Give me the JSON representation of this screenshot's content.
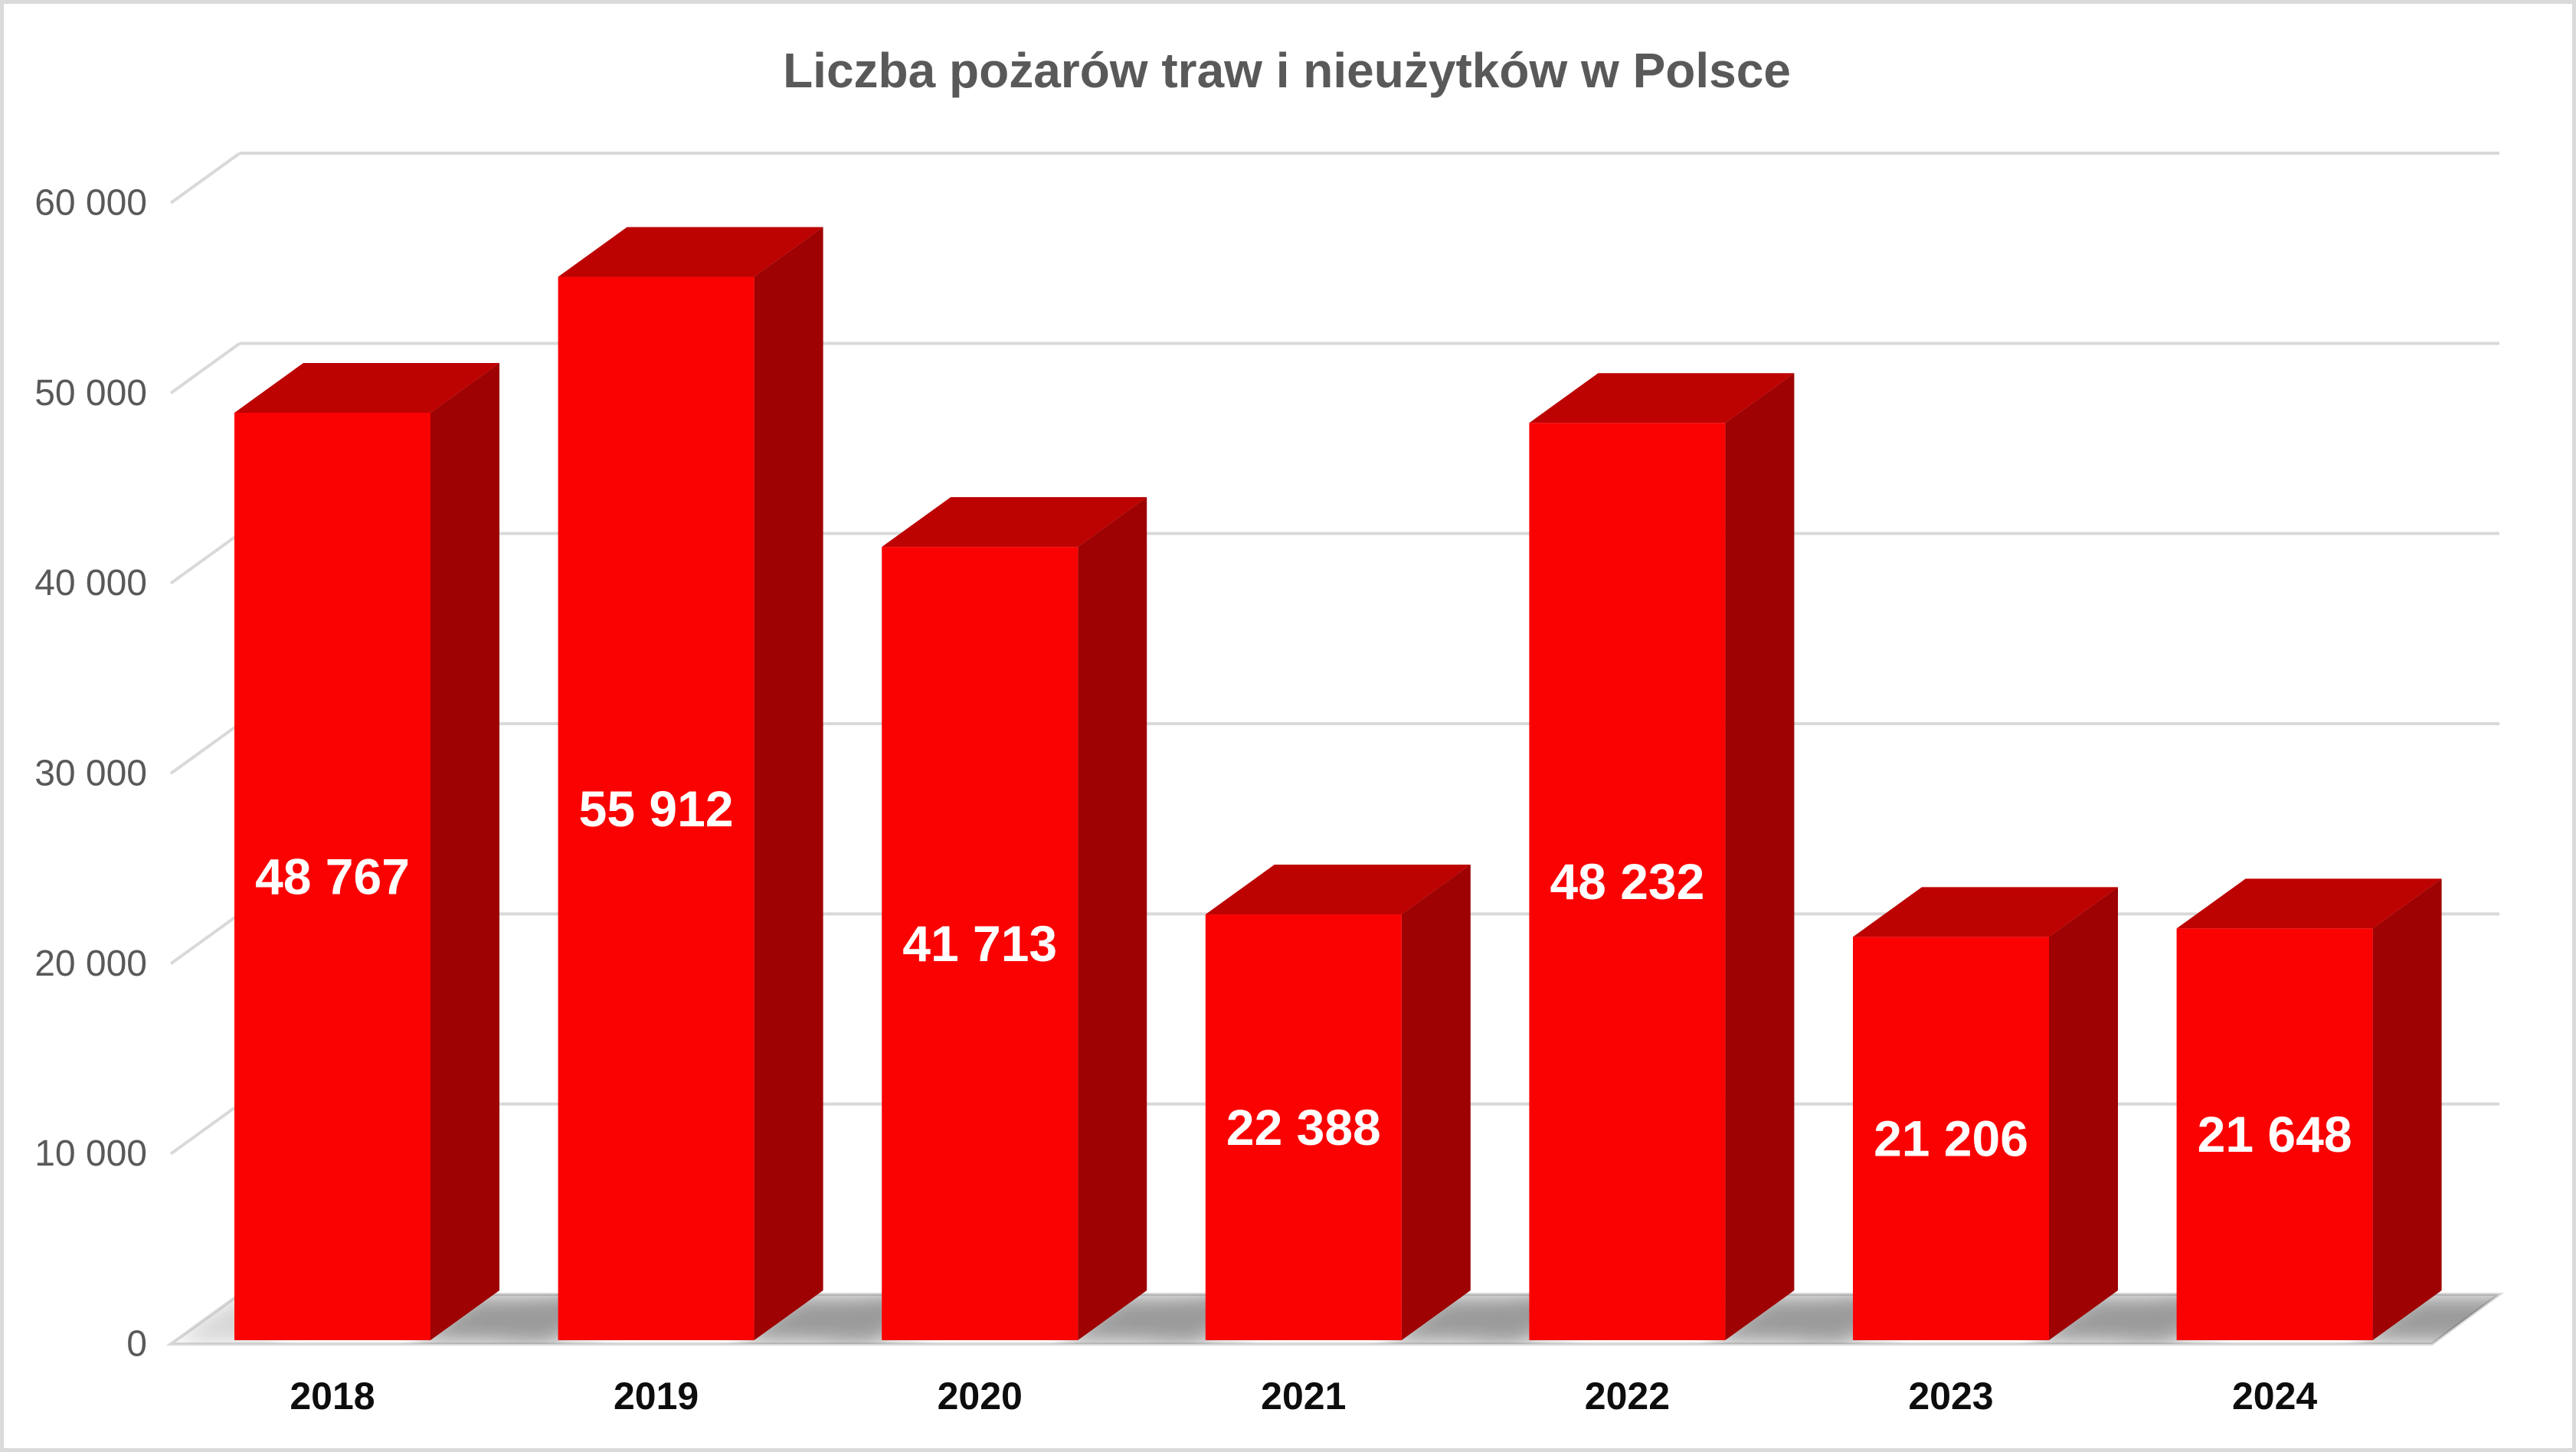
{
  "title": "Liczba pożarów traw i nieużytków w Polsce",
  "chart_data": {
    "type": "bar",
    "style": "3d-column",
    "title": "Liczba pożarów traw i nieużytków w Polsce",
    "categories": [
      "2018",
      "2019",
      "2020",
      "2021",
      "2022",
      "2023",
      "2024"
    ],
    "values": [
      48767,
      55912,
      41713,
      22388,
      48232,
      21206,
      21648
    ],
    "value_labels": [
      "48 767",
      "55 912",
      "41 713",
      "22 388",
      "48 232",
      "21 206",
      "21 648"
    ],
    "xlabel": "",
    "ylabel": "",
    "ylim": [
      0,
      60000
    ],
    "ytick_step": 10000,
    "ytick_labels": [
      "0",
      "10 000",
      "20 000",
      "30 000",
      "40 000",
      "50 000",
      "60 000"
    ],
    "grid": true,
    "legend": false,
    "colors": {
      "bar_front": "#fb0202",
      "bar_top": "#bd0202",
      "bar_side": "#9e0202",
      "gridline": "#d9d9d9",
      "axis_text": "#595959",
      "title_text": "#595959",
      "category_text": "#0d0d0d",
      "data_label_text": "#ffffff",
      "frame_border": "#dadada",
      "background": "#ffffff"
    }
  }
}
